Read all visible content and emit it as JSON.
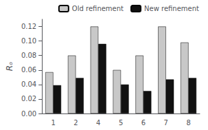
{
  "chart_data": {
    "type": "bar",
    "categories": [
      "1",
      "2",
      "4",
      "5",
      "6",
      "7",
      "8"
    ],
    "series": [
      {
        "name": "Old refinement",
        "color": "#c8c8c8",
        "values": [
          0.057,
          0.08,
          0.12,
          0.06,
          0.08,
          0.12,
          0.098
        ]
      },
      {
        "name": "New refinement",
        "color": "#111111",
        "values": [
          0.039,
          0.049,
          0.096,
          0.04,
          0.031,
          0.047,
          0.049
        ]
      }
    ],
    "ylabel": "Rₒ",
    "ylim": [
      0.0,
      0.13
    ],
    "yticks": [
      {
        "value": 0.0,
        "label": "0.00"
      },
      {
        "value": 0.02,
        "label": "0.02"
      },
      {
        "value": 0.04,
        "label": "0.04"
      },
      {
        "value": 0.06,
        "label": "0.06"
      },
      {
        "value": 0.08,
        "label": "0.08"
      },
      {
        "value": 0.1,
        "label": "0.10"
      },
      {
        "value": 0.12,
        "label": "0.12"
      }
    ],
    "legend": "upper right",
    "grid": false
  }
}
